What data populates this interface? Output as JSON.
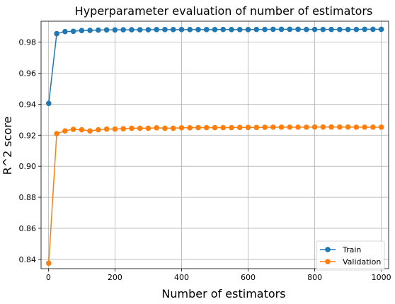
{
  "chart_data": {
    "type": "line",
    "title": "Hyperparameter evaluation of number of estimators",
    "xlabel": "Number of estimators",
    "ylabel": "R^2 score",
    "xlim": [
      -22,
      1022
    ],
    "ylim": [
      0.834,
      0.9935
    ],
    "xticks": [
      0,
      200,
      400,
      600,
      800,
      1000
    ],
    "yticks": [
      0.84,
      0.86,
      0.88,
      0.9,
      0.92,
      0.94,
      0.96,
      0.98
    ],
    "ytick_labels": [
      "0.84",
      "0.86",
      "0.88",
      "0.90",
      "0.92",
      "0.94",
      "0.96",
      "0.98"
    ],
    "grid": true,
    "legend_position": "lower-right",
    "x": [
      1,
      25,
      50,
      75,
      100,
      125,
      150,
      175,
      200,
      225,
      250,
      275,
      300,
      325,
      350,
      375,
      400,
      425,
      450,
      475,
      500,
      525,
      550,
      575,
      600,
      625,
      650,
      675,
      700,
      725,
      750,
      775,
      800,
      825,
      850,
      875,
      900,
      925,
      950,
      975,
      1000
    ],
    "series": [
      {
        "name": "Train",
        "color": "#1f77b4",
        "values": [
          0.9405,
          0.9855,
          0.9868,
          0.987,
          0.9875,
          0.9876,
          0.9878,
          0.9879,
          0.9879,
          0.988,
          0.988,
          0.988,
          0.988,
          0.9881,
          0.9881,
          0.9881,
          0.9881,
          0.9881,
          0.9881,
          0.9881,
          0.9881,
          0.9882,
          0.9881,
          0.9881,
          0.9881,
          0.9882,
          0.9882,
          0.9883,
          0.9883,
          0.9883,
          0.9883,
          0.9882,
          0.9882,
          0.9882,
          0.9882,
          0.9882,
          0.9882,
          0.9882,
          0.9883,
          0.9883,
          0.9883
        ]
      },
      {
        "name": "Validation",
        "color": "#ff7f0e",
        "values": [
          0.8375,
          0.921,
          0.9228,
          0.9238,
          0.9235,
          0.9228,
          0.9235,
          0.924,
          0.924,
          0.9242,
          0.9245,
          0.9245,
          0.9245,
          0.9248,
          0.9245,
          0.9245,
          0.9248,
          0.9248,
          0.9249,
          0.9249,
          0.9249,
          0.9249,
          0.9249,
          0.925,
          0.925,
          0.925,
          0.9251,
          0.9252,
          0.9252,
          0.9252,
          0.9252,
          0.9252,
          0.9253,
          0.9253,
          0.9253,
          0.9253,
          0.9253,
          0.9252,
          0.9252,
          0.9252,
          0.9252
        ]
      }
    ]
  }
}
